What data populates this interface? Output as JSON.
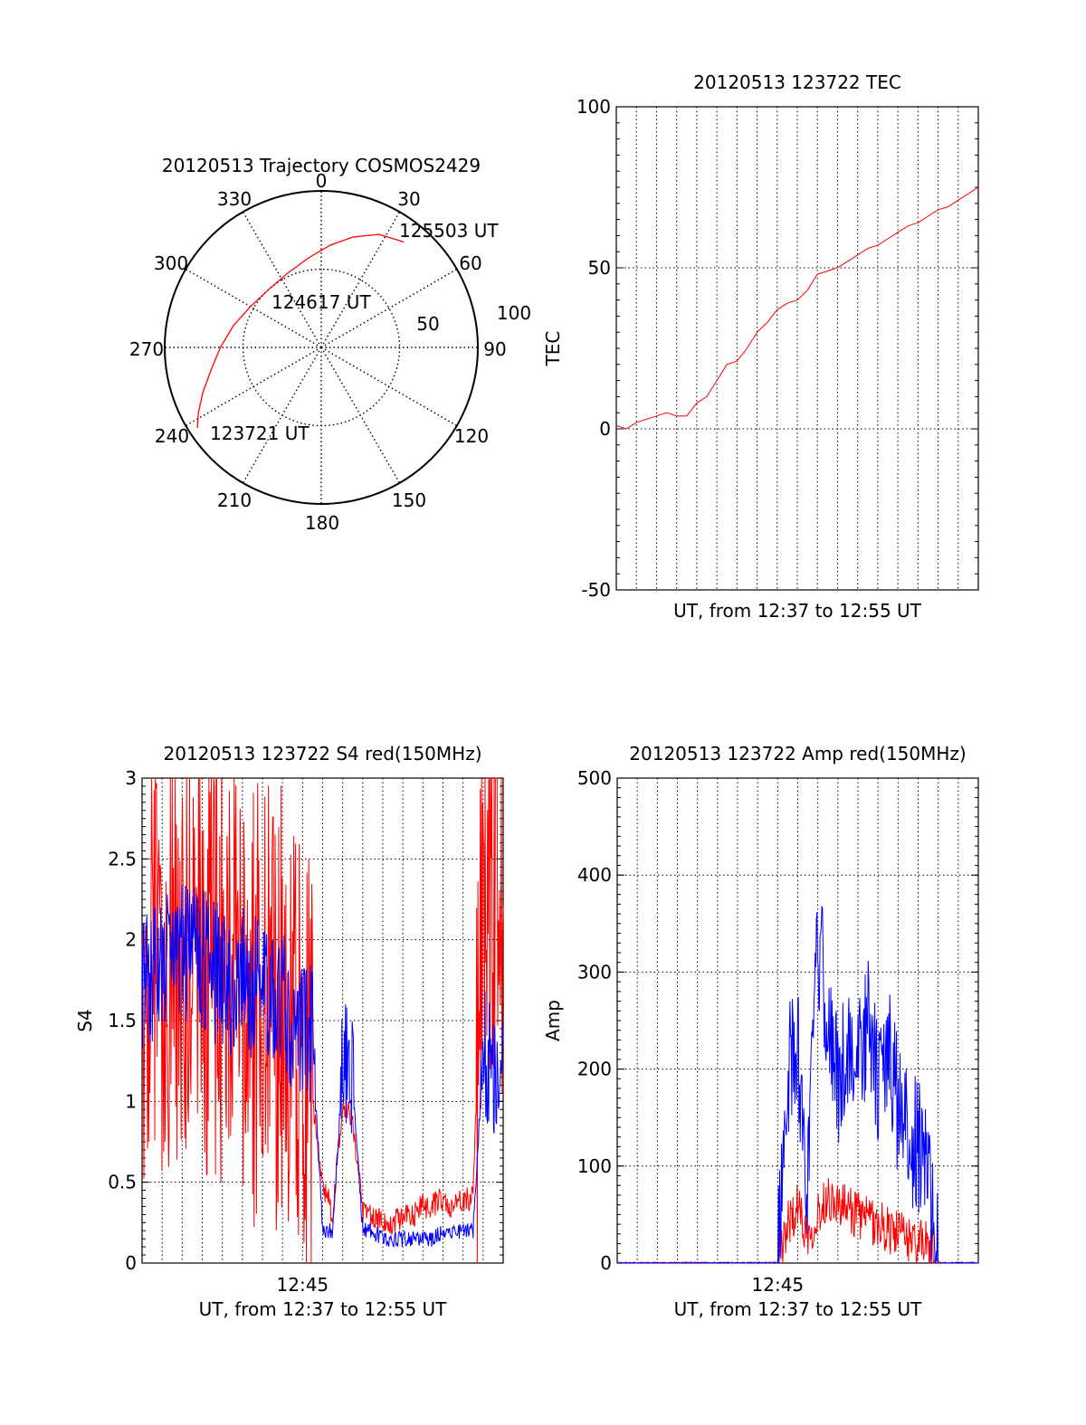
{
  "chart_data": [
    {
      "type": "polar",
      "title": "20120513 Trajectory COSMOS2429",
      "angle_labels": [
        "0",
        "30",
        "60",
        "90",
        "120",
        "150",
        "180",
        "210",
        "240",
        "270",
        "300",
        "330"
      ],
      "radius_labels": [
        "100",
        "50"
      ],
      "annotations": [
        "123721 UT",
        "124617 UT",
        "125503 UT"
      ],
      "series": [
        {
          "color": "#ff0000",
          "points": [
            {
              "az": 237,
              "el": 5
            },
            {
              "az": 242,
              "el": 10
            },
            {
              "az": 249,
              "el": 17
            },
            {
              "az": 258,
              "el": 25
            },
            {
              "az": 270,
              "el": 32
            },
            {
              "az": 284,
              "el": 38
            },
            {
              "az": 300,
              "el": 43
            },
            {
              "az": 318,
              "el": 45
            },
            {
              "az": 336,
              "el": 43
            },
            {
              "az": 352,
              "el": 38
            },
            {
              "az": 5,
              "el": 31
            },
            {
              "az": 16,
              "el": 24
            },
            {
              "az": 27,
              "el": 17
            },
            {
              "az": 38,
              "el": 13
            }
          ]
        }
      ]
    },
    {
      "type": "line",
      "title": "20120513 123722 TEC",
      "xlabel": "UT, from 12:37 to 12:55 UT",
      "ylabel": "TEC",
      "ylim": [
        -50,
        100
      ],
      "yticks": [
        "100",
        "50",
        "0",
        "-50"
      ],
      "grid": true,
      "series": [
        {
          "color": "#ff0000",
          "x": [
            0.0,
            0.5,
            1.0,
            1.5,
            2.0,
            2.5,
            3.0,
            3.5,
            4.0,
            4.5,
            5.0,
            5.5,
            6.0,
            6.5,
            7.0,
            7.5,
            8.0,
            8.5,
            9.0,
            9.5,
            10.0,
            10.5,
            11.0,
            11.5,
            12.0,
            12.5,
            13.0,
            13.5,
            14.0,
            14.5,
            15.0,
            15.5,
            16.0,
            16.5,
            17.0,
            17.5,
            18.0
          ],
          "y": [
            1,
            0,
            2,
            3,
            4,
            5,
            4,
            4,
            8,
            10,
            15,
            20,
            21,
            25,
            30,
            33,
            37,
            39,
            40,
            43,
            48,
            49,
            50,
            52,
            54,
            56,
            57,
            59,
            61,
            63,
            64,
            66,
            68,
            69,
            71,
            73,
            75
          ]
        }
      ]
    },
    {
      "type": "line",
      "title": "20120513 123722 S4 red(150MHz)",
      "xlabel": "UT, from 12:37 to 12:55 UT",
      "ylabel": "S4",
      "ylim": [
        0,
        3
      ],
      "yticks": [
        "3",
        "2.5",
        "2",
        "1.5",
        "1",
        "0.5",
        "0"
      ],
      "xtick_labels": [
        "12:45"
      ],
      "grid": true,
      "series": [
        {
          "color": "#ff0000",
          "x": [
            0.0,
            0.5,
            1.0,
            1.5,
            2.0,
            2.5,
            3.0,
            3.5,
            4.0,
            4.5,
            5.0,
            5.5,
            6.0,
            6.5,
            7.0,
            7.5,
            8.0,
            8.5,
            9.0,
            9.5,
            10.0,
            10.5,
            11.0,
            11.5,
            12.0,
            12.5,
            13.0,
            13.5,
            14.0,
            14.5,
            15.0,
            15.5,
            16.0,
            16.5,
            17.0,
            17.5,
            18.0
          ],
          "y": [
            1.8,
            2.1,
            1.9,
            2.0,
            1.8,
            2.0,
            1.8,
            1.9,
            1.9,
            1.7,
            1.8,
            1.6,
            1.7,
            1.5,
            1.6,
            1.4,
            1.5,
            1.0,
            0.5,
            0.3,
            1.0,
            0.9,
            0.3,
            0.3,
            0.25,
            0.25,
            0.3,
            0.3,
            0.35,
            0.35,
            0.4,
            0.35,
            0.4,
            0.4,
            2.3,
            2.5,
            2.4
          ]
        },
        {
          "color": "#0000ff",
          "x": [
            0.0,
            0.5,
            1.0,
            1.5,
            2.0,
            2.5,
            3.0,
            3.5,
            4.0,
            4.5,
            5.0,
            5.5,
            6.0,
            6.5,
            7.0,
            7.5,
            8.0,
            8.5,
            9.0,
            9.5,
            10.0,
            10.5,
            11.0,
            11.5,
            12.0,
            12.5,
            13.0,
            13.5,
            14.0,
            14.5,
            15.0,
            15.5,
            16.0,
            16.5,
            17.0,
            17.5,
            18.0
          ],
          "y": [
            1.7,
            1.8,
            1.9,
            1.8,
            1.9,
            2.0,
            1.9,
            1.8,
            1.8,
            1.7,
            1.8,
            1.7,
            1.7,
            1.6,
            1.6,
            1.5,
            1.5,
            1.4,
            0.2,
            0.2,
            1.2,
            1.1,
            0.2,
            0.2,
            0.15,
            0.15,
            0.15,
            0.15,
            0.15,
            0.15,
            0.2,
            0.2,
            0.2,
            0.2,
            1.3,
            1.2,
            1.2
          ]
        }
      ]
    },
    {
      "type": "line",
      "title": "20120513 123722 Amp red(150MHz)",
      "xlabel": "UT, from 12:37 to 12:55 UT",
      "ylabel": "Amp",
      "ylim": [
        0,
        500
      ],
      "yticks": [
        "500",
        "400",
        "300",
        "200",
        "100",
        "0"
      ],
      "xtick_labels": [
        "12:45"
      ],
      "grid": true,
      "series": [
        {
          "color": "#ff0000",
          "x": [
            0.0,
            1.0,
            2.0,
            3.0,
            4.0,
            5.0,
            6.0,
            7.0,
            8.0,
            8.5,
            9.0,
            9.5,
            10.0,
            10.5,
            11.0,
            11.5,
            12.0,
            12.5,
            13.0,
            13.5,
            14.0,
            14.5,
            15.0,
            15.5,
            16.0,
            16.5,
            17.0,
            18.0
          ],
          "y": [
            0,
            0,
            0,
            0,
            0,
            0,
            0,
            0,
            0,
            40,
            60,
            30,
            50,
            70,
            60,
            55,
            50,
            45,
            40,
            35,
            30,
            25,
            20,
            20,
            0,
            0,
            0,
            0
          ]
        },
        {
          "color": "#0000ff",
          "x": [
            0.0,
            1.0,
            2.0,
            3.0,
            4.0,
            5.0,
            6.0,
            7.0,
            8.0,
            8.5,
            9.0,
            9.5,
            10.0,
            10.5,
            11.0,
            11.5,
            12.0,
            12.5,
            13.0,
            13.5,
            14.0,
            14.5,
            15.0,
            15.5,
            16.0,
            16.5,
            17.0,
            18.0
          ],
          "y": [
            0,
            0,
            0,
            0,
            0,
            0,
            0,
            0,
            0,
            200,
            220,
            80,
            330,
            260,
            180,
            230,
            200,
            250,
            180,
            220,
            160,
            130,
            120,
            90,
            0,
            0,
            0,
            0
          ]
        }
      ]
    }
  ]
}
